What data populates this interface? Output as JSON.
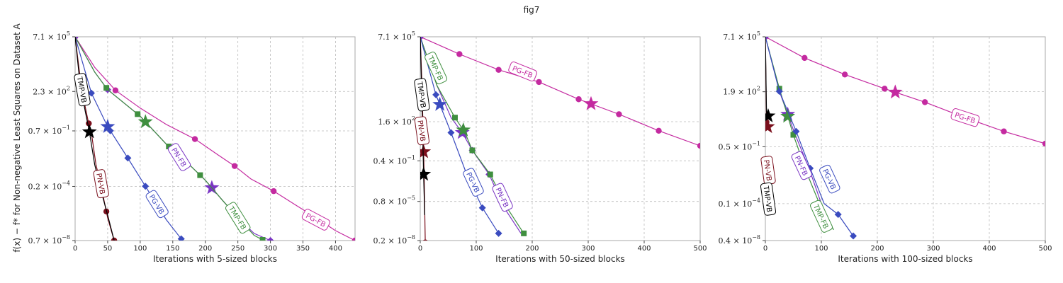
{
  "figure": {
    "title": "fig7",
    "ylabel": "f(x) − f* for Non-negative Least Squares on Dataset A"
  },
  "colors": {
    "TMP-VB": "#000000",
    "PN-VB": "#7a0f1c",
    "PG-VB": "#3a4bbf",
    "PN-FB": "#7a35c4",
    "TMP-FB": "#3f8f3f",
    "PG-FB": "#c42aa0",
    "grid": "#bbbbbb"
  },
  "chart_data": [
    {
      "type": "line",
      "xlabel": "Iterations with 5-sized blocks",
      "ylabel": "f(x) − f* for Non-negative Least Squares on Dataset A",
      "xlim": [
        0,
        430
      ],
      "xticks": [
        0,
        50,
        100,
        150,
        200,
        250,
        300,
        350,
        400
      ],
      "yscale": "log",
      "ylim": [
        7e-08,
        710000
      ],
      "yticks": [
        7e-08,
        0.0002,
        0.7,
        230,
        710000
      ],
      "ytick_labels": [
        {
          "m": "0.7",
          "e": "−8"
        },
        {
          "m": "0.2",
          "e": "−4"
        },
        {
          "m": "0.7",
          "e": "−1"
        },
        {
          "m": "2.3",
          "e": "2"
        },
        {
          "m": "7.1",
          "e": "5"
        }
      ],
      "grid": true,
      "series": [
        {
          "name": "PG-FB",
          "marker": "circle",
          "x": [
            0,
            30,
            62,
            100,
            140,
            185,
            220,
            245,
            270,
            305,
            340,
            370,
            400,
            430
          ],
          "y": [
            710000,
            8000,
            270,
            20,
            1.8,
            0.2,
            0.02,
            0.004,
            0.0006,
            0.0001,
            1.2e-05,
            2e-06,
            3e-07,
            7e-08
          ],
          "marker_x": [
            0,
            62,
            184,
            245,
            305,
            430
          ],
          "label_pos": [
            370,
            1.5e-06
          ],
          "label_rot": 28,
          "star_x": null
        },
        {
          "name": "PN-FB",
          "marker": "diamond",
          "x": [
            0,
            30,
            50,
            100,
            140,
            175,
            200,
            225,
            250,
            275,
            300
          ],
          "y": [
            710000,
            4000,
            300,
            6,
            0.1,
            0.005,
            0.0005,
            3e-05,
            2e-06,
            2e-07,
            7e-08
          ],
          "marker_x": [
            0,
            50,
            300
          ],
          "label_pos": [
            160,
            0.015
          ],
          "label_rot": 58,
          "star_x": 210
        },
        {
          "name": "TMP-FB",
          "marker": "square",
          "x": [
            0,
            30,
            50,
            100,
            140,
            175,
            200,
            225,
            250,
            275,
            290
          ],
          "y": [
            710000,
            4000,
            300,
            6,
            0.1,
            0.005,
            0.0005,
            3e-05,
            2e-06,
            1.5e-07,
            7e-08
          ],
          "marker_x": [
            48,
            96,
            144,
            192,
            288
          ],
          "label_pos": [
            250,
            2e-06
          ],
          "label_rot": 58,
          "star_x": 108
        },
        {
          "name": "PG-VB",
          "marker": "diamond",
          "x": [
            0,
            25,
            50,
            80,
            110,
            140,
            165
          ],
          "y": [
            710000,
            180,
            1.3,
            0.015,
            0.00015,
            1.5e-06,
            7e-08
          ],
          "marker_x": [
            25,
            54,
            81,
            108,
            163
          ],
          "label_pos": [
            126,
            1.5e-05
          ],
          "label_rot": 58,
          "star_x": 50
        },
        {
          "name": "PN-VB",
          "marker": "circle",
          "x": [
            0,
            10,
            20,
            25,
            32,
            40,
            50,
            60
          ],
          "y": [
            710000,
            300,
            3,
            0.5,
            0.005,
            0.0002,
            2e-06,
            7e-08
          ],
          "marker_x": [
            21,
            35,
            48,
            60
          ],
          "label_pos": [
            40,
            0.0003
          ],
          "label_rot": 80,
          "star_x": null
        },
        {
          "name": "TMP-VB",
          "marker": "none",
          "x": [
            0,
            8,
            16,
            22,
            30,
            40,
            50,
            60
          ],
          "y": [
            710000,
            500,
            10,
            0.6,
            0.005,
            0.0001,
            3e-06,
            7e-08
          ],
          "marker_x": [],
          "label_pos": [
            11,
            300
          ],
          "label_rot": 80,
          "star_x": 22
        }
      ]
    },
    {
      "type": "line",
      "xlabel": "Iterations with 50-sized blocks",
      "xlim": [
        0,
        500
      ],
      "xticks": [
        0,
        100,
        200,
        300,
        400,
        500
      ],
      "yscale": "log",
      "ylim": [
        2e-08,
        710000
      ],
      "yticks": [
        2e-08,
        8e-06,
        0.004,
        1.6,
        710000
      ],
      "ytick_labels": [
        {
          "m": "0.2",
          "e": "−8"
        },
        {
          "m": "0.8",
          "e": "−5"
        },
        {
          "m": "0.4",
          "e": "−1"
        },
        {
          "m": "1.6",
          "e": "2"
        },
        {
          "m": "7.1",
          "e": "5"
        }
      ],
      "grid": true,
      "series": [
        {
          "name": "PG-FB",
          "marker": "circle",
          "x": [
            0,
            70,
            140,
            212,
            283,
            355,
            426,
            500
          ],
          "y": [
            710000,
            50000,
            4500,
            700,
            50,
            5,
            0.4,
            0.04
          ],
          "marker_x": [
            0,
            70,
            140,
            212,
            283,
            355,
            426,
            500
          ],
          "label_pos": [
            183,
            3500
          ],
          "label_rot": 22,
          "star_x": 305
        },
        {
          "name": "PN-FB",
          "marker": "diamond",
          "x": [
            0,
            30,
            55,
            75,
            93,
            123,
            150,
            180
          ],
          "y": [
            710000,
            400,
            3,
            0.3,
            0.02,
            0.0005,
            3e-06,
            6e-08
          ],
          "marker_x": [
            0,
            93,
            123
          ],
          "label_pos": [
            147,
            1.5e-05
          ],
          "label_rot": 65,
          "star_x": 75
        },
        {
          "name": "TMP-FB",
          "marker": "square",
          "x": [
            0,
            30,
            62,
            80,
            93,
            125,
            155,
            185
          ],
          "y": [
            710000,
            400,
            3,
            0.3,
            0.02,
            0.0005,
            3e-06,
            6e-08
          ],
          "marker_x": [
            62,
            93,
            125,
            185
          ],
          "label_pos": [
            28,
            6000
          ],
          "label_rot": 65,
          "star_x": 77
        },
        {
          "name": "PG-VB",
          "marker": "diamond",
          "x": [
            0,
            28,
            55,
            83,
            111,
            140
          ],
          "y": [
            710000,
            100,
            0.3,
            0.0005,
            3e-06,
            6e-08
          ],
          "marker_x": [
            28,
            55,
            83,
            111,
            140
          ],
          "label_pos": [
            95,
            0.00015
          ],
          "label_rot": 65,
          "star_x": 35
        },
        {
          "name": "PN-VB",
          "marker": "circle",
          "x": [
            0,
            3,
            5,
            7,
            9
          ],
          "y": [
            710000,
            500,
            0.5,
            0.0005,
            1.5e-08
          ],
          "marker_x": [
            3,
            9
          ],
          "label_pos": [
            3,
            0.4
          ],
          "label_rot": 82,
          "star_x": 6
        },
        {
          "name": "TMP-VB",
          "marker": "none",
          "x": [
            0,
            2,
            4,
            6,
            8
          ],
          "y": [
            710000,
            800,
            1,
            0.0005,
            1e-06
          ],
          "marker_x": [],
          "label_pos": [
            3,
            100
          ],
          "label_rot": 82,
          "star_x": 6
        }
      ]
    },
    {
      "type": "line",
      "xlabel": "Iterations with 100-sized blocks",
      "xlim": [
        0,
        500
      ],
      "xticks": [
        0,
        100,
        200,
        300,
        400,
        500
      ],
      "yscale": "log",
      "ylim": [
        4e-08,
        710000
      ],
      "yticks": [
        4e-08,
        1e-05,
        0.05,
        190,
        710000
      ],
      "ytick_labels": [
        {
          "m": "0.4",
          "e": "−8"
        },
        {
          "m": "0.1",
          "e": "−4"
        },
        {
          "m": "0.5",
          "e": "−1"
        },
        {
          "m": "1.9",
          "e": "2"
        },
        {
          "m": "7.1",
          "e": "5"
        }
      ],
      "grid": true,
      "series": [
        {
          "name": "PG-FB",
          "marker": "circle",
          "x": [
            0,
            70,
            142,
            213,
            285,
            356,
            426,
            500
          ],
          "y": [
            710000,
            30000,
            2500,
            300,
            40,
            4,
            0.5,
            0.08
          ],
          "marker_x": [
            0,
            70,
            142,
            213,
            285,
            426,
            500
          ],
          "label_pos": [
            357,
            4
          ],
          "label_rot": 18,
          "star_x": 232
        },
        {
          "name": "PN-FB",
          "marker": "diamond",
          "x": [
            0,
            25,
            52,
            78,
            100,
            115
          ],
          "y": [
            710000,
            200,
            0.4,
            0.002,
            1e-05,
            4e-07
          ],
          "marker_x": [
            0,
            52,
            78
          ],
          "label_pos": [
            65,
            0.003
          ],
          "label_rot": 65,
          "star_x": 40
        },
        {
          "name": "TMP-FB",
          "marker": "square",
          "x": [
            0,
            25,
            50,
            75,
            100,
            122
          ],
          "y": [
            710000,
            300,
            0.3,
            0.0008,
            5e-06,
            2e-07
          ],
          "marker_x": [
            25,
            50,
            75
          ],
          "label_pos": [
            100,
            1.5e-06
          ],
          "label_rot": 65,
          "star_x": 40
        },
        {
          "name": "PG-VB",
          "marker": "diamond",
          "x": [
            0,
            25,
            55,
            80,
            105,
            130,
            157
          ],
          "y": [
            710000,
            200,
            0.5,
            0.002,
            1e-05,
            2e-06,
            8e-08
          ],
          "marker_x": [
            25,
            55,
            80,
            130,
            157
          ],
          "label_pos": [
            115,
            0.0004
          ],
          "label_rot": 65,
          "star_x": null
        },
        {
          "name": "PN-VB",
          "marker": "circle",
          "x": [
            0,
            2,
            3
          ],
          "y": [
            710000,
            2,
            1
          ],
          "marker_x": [
            2,
            3
          ],
          "label_pos": [
            5,
            0.0015
          ],
          "label_rot": 82,
          "star_x": 4
        },
        {
          "name": "TMP-VB",
          "marker": "none",
          "x": [
            0,
            2,
            3
          ],
          "y": [
            710000,
            10,
            5
          ],
          "marker_x": [],
          "label_pos": [
            5,
            2e-05
          ],
          "label_rot": 82,
          "star_x": 5
        }
      ]
    }
  ]
}
